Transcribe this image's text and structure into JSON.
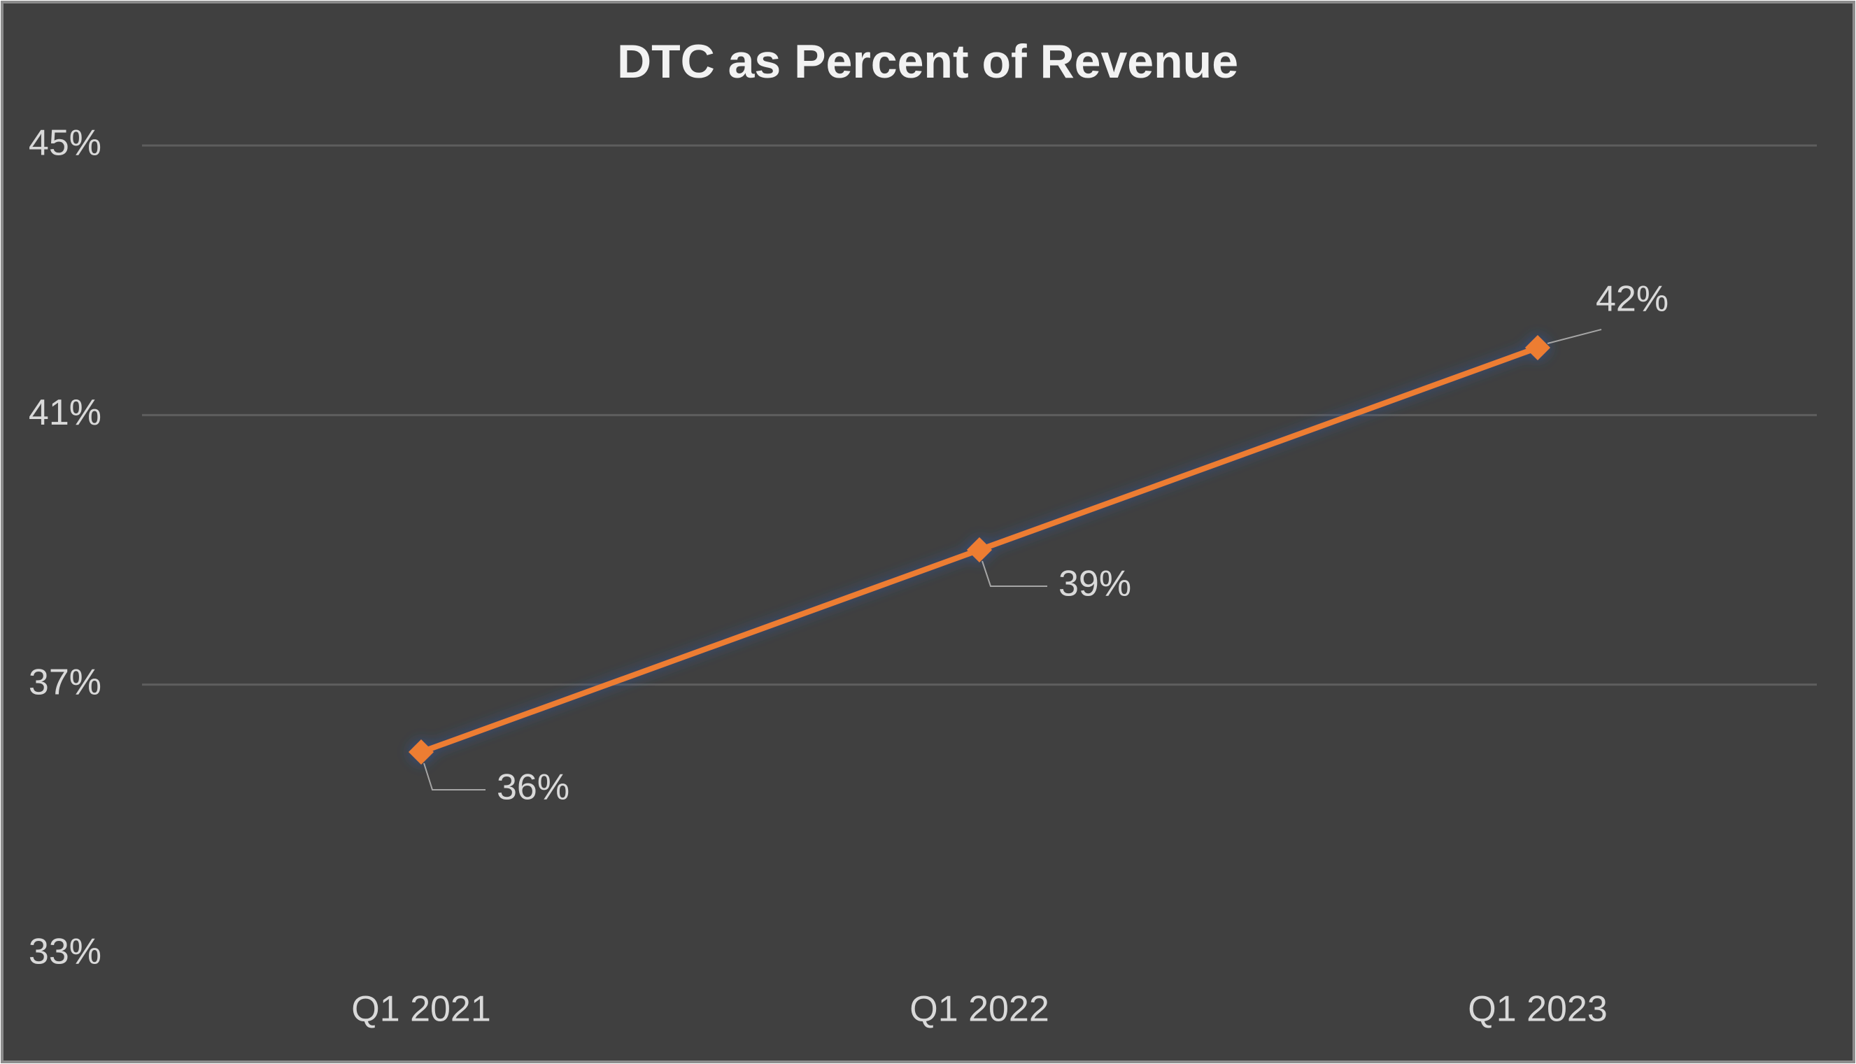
{
  "chart_data": {
    "type": "line",
    "title": "DTC as Percent of Revenue",
    "categories": [
      "Q1 2021",
      "Q1 2022",
      "Q1 2023"
    ],
    "series": [
      {
        "color": "#ed7d31",
        "values": [
          36,
          39,
          42
        ],
        "value_labels": [
          "36%",
          "39%",
          "42%"
        ]
      }
    ],
    "ylim": [
      33,
      45
    ],
    "yticks": [
      {
        "value": 33,
        "label": "33%"
      },
      {
        "value": 37,
        "label": "37%"
      },
      {
        "value": 41,
        "label": "41%"
      },
      {
        "value": 45,
        "label": "45%"
      }
    ],
    "grid": true
  }
}
